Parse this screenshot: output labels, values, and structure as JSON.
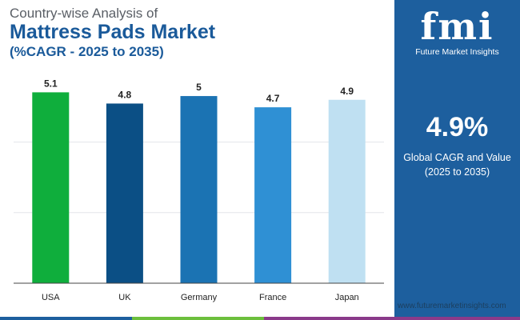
{
  "title": {
    "line1": "Country-wise Analysis of",
    "line2": "Mattress Pads Market",
    "line3": "(%CAGR - 2025 to 2035)"
  },
  "chart_data": {
    "type": "bar",
    "categories": [
      "USA",
      "UK",
      "Germany",
      "France",
      "Japan"
    ],
    "values": [
      5.1,
      4.8,
      5,
      4.7,
      4.9
    ],
    "value_labels": [
      "5.1",
      "4.8",
      "5",
      "4.7",
      "4.9"
    ],
    "bar_colors": [
      "#0fae3c",
      "#0b4f85",
      "#1b73b3",
      "#2f90d4",
      "#bfe0f2"
    ],
    "ylim": [
      0,
      5.6
    ],
    "grid": true,
    "title": "",
    "xlabel": "",
    "ylabel": ""
  },
  "panel": {
    "logo_text": "Future Market Insights",
    "logo_mark": "fmi",
    "cagr_value": "4.9%",
    "cagr_label_1": "Global CAGR and Value",
    "cagr_label_2": "(2025 to 2035)"
  },
  "footer": {
    "url": "www.futuremarketinsights.com"
  },
  "colors": {
    "panel_bg": "#1d5f9e",
    "title_blue": "#1a5a9a",
    "stripe": [
      "#1d5f9e",
      "#6cbf3c",
      "#8a3a8a"
    ]
  }
}
